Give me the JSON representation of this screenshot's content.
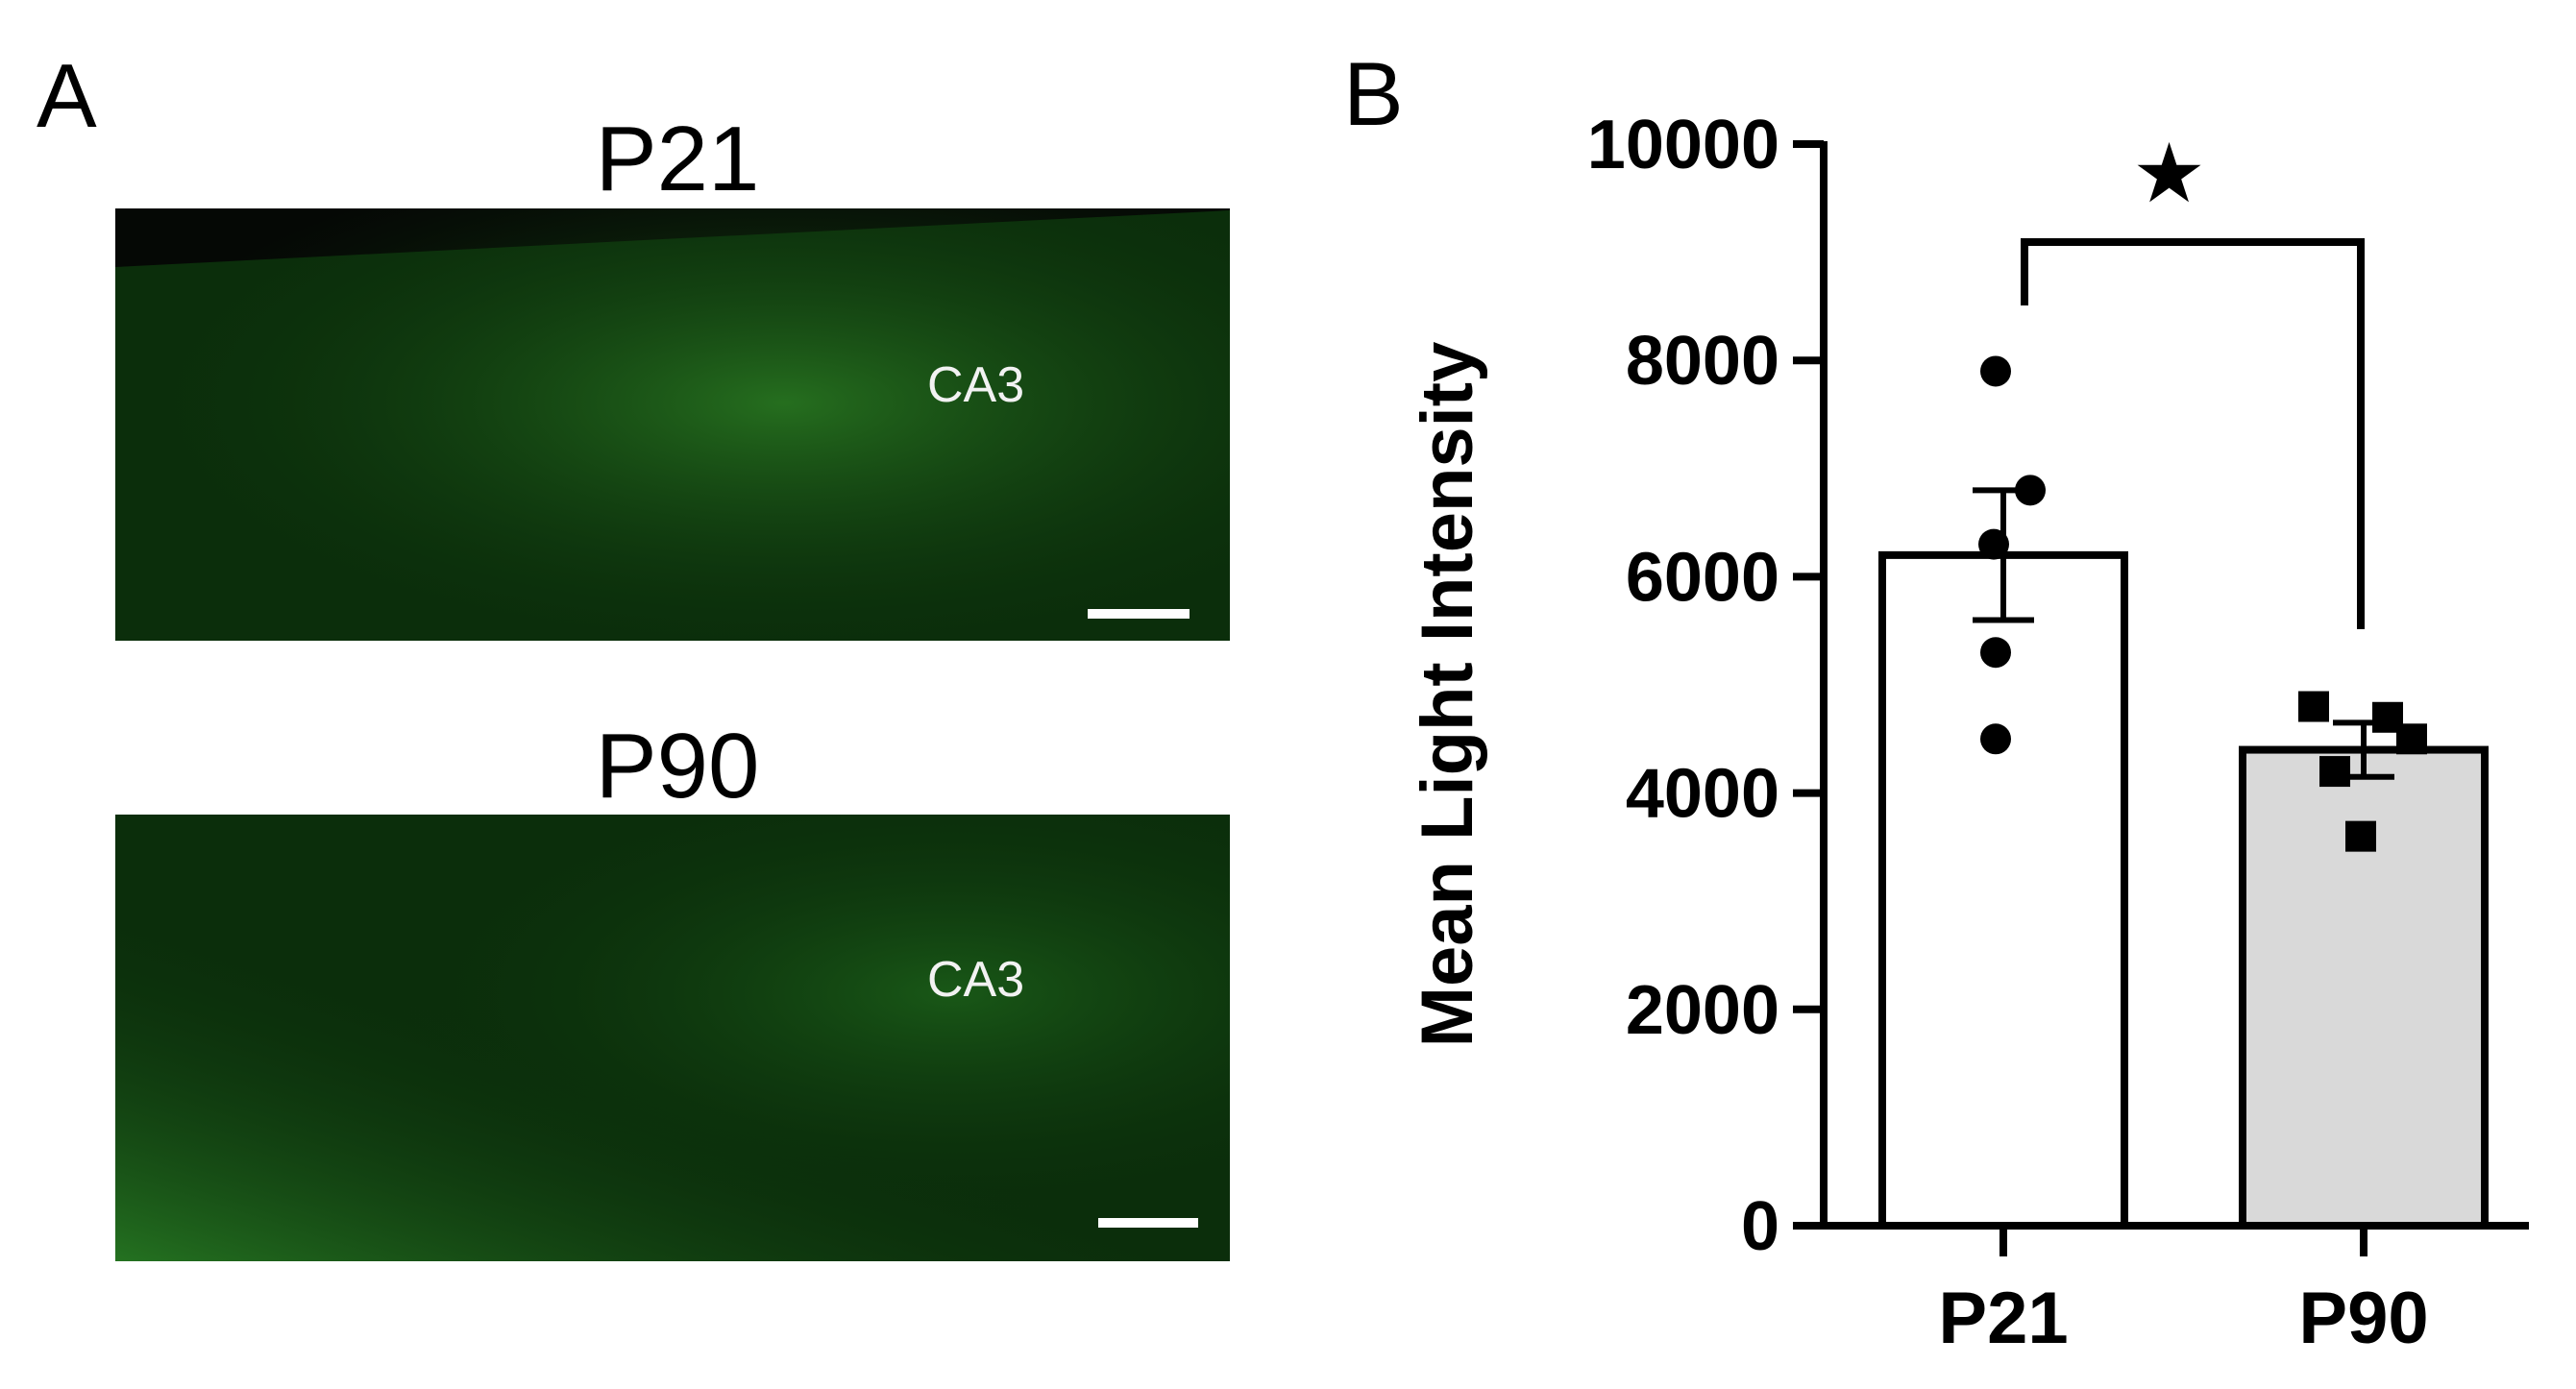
{
  "panels": {
    "a_letter": "A",
    "b_letter": "B"
  },
  "images": [
    {
      "title": "P21",
      "region": "CA3"
    },
    {
      "title": "P90",
      "region": "CA3"
    }
  ],
  "colors": {
    "micrograph_base": "#0b2e0b",
    "micrograph_glow": "#1f6a1c",
    "bar_p21": "#ffffff",
    "bar_p90": "#d9d9d9",
    "ink": "#000000"
  },
  "chart_data": {
    "type": "bar",
    "categories": [
      "P21",
      "P90"
    ],
    "values": [
      6200,
      4400
    ],
    "error_sem": [
      600,
      250
    ],
    "points": [
      [
        7900,
        6800,
        6300,
        5300,
        4500
      ],
      [
        4800,
        4700,
        4500,
        4200,
        3600
      ]
    ],
    "point_markers": [
      "circle",
      "square"
    ],
    "ylabel": "Mean Light Intensity",
    "ylim": [
      0,
      10000
    ],
    "yticks": [
      "0",
      "2000",
      "4000",
      "6000",
      "8000",
      "10000"
    ],
    "significance": "★"
  }
}
